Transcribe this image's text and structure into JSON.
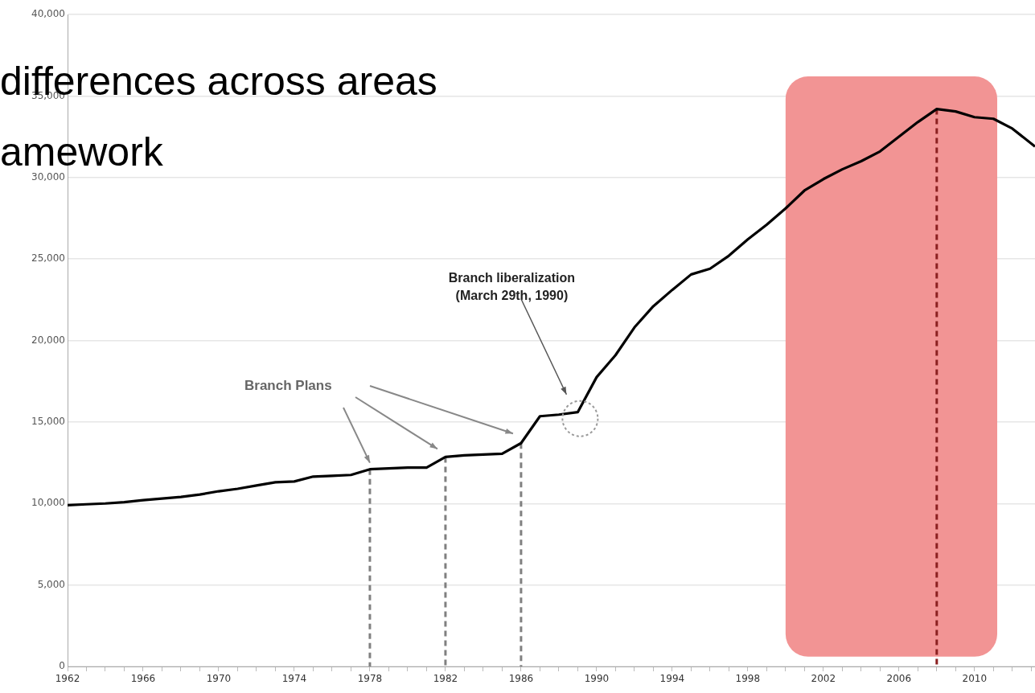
{
  "chart_data": {
    "type": "line",
    "x": [
      1962,
      1963,
      1964,
      1965,
      1966,
      1967,
      1968,
      1969,
      1970,
      1971,
      1972,
      1973,
      1974,
      1975,
      1976,
      1977,
      1978,
      1979,
      1980,
      1981,
      1982,
      1983,
      1984,
      1985,
      1986,
      1987,
      1988,
      1989,
      1990,
      1991,
      1992,
      1993,
      1994,
      1995,
      1996,
      1997,
      1998,
      1999,
      2000,
      2001,
      2002,
      2003,
      2004,
      2005,
      2006,
      2007,
      2008,
      2009,
      2010,
      2011,
      2012,
      2013.2
    ],
    "series": [
      {
        "color": "#000000",
        "values": [
          9900,
          9950,
          10000,
          10080,
          10200,
          10300,
          10400,
          10550,
          10750,
          10900,
          11100,
          11300,
          11350,
          11650,
          11700,
          11750,
          12100,
          12150,
          12200,
          12200,
          12850,
          12950,
          13000,
          13050,
          13700,
          15350,
          15450,
          15600,
          17750,
          19100,
          20800,
          22100,
          23100,
          24050,
          24400,
          25200,
          26200,
          27100,
          28100,
          29200,
          29900,
          30500,
          31000,
          31600,
          32500,
          33400,
          34200,
          34050,
          33700,
          33600,
          33000,
          31900
        ]
      }
    ],
    "xlim": [
      1962,
      2013.2
    ],
    "xticks": [
      1962,
      {
        "value": 1963,
        "label": null
      },
      {
        "value": 1964,
        "label": null
      },
      {
        "value": 1965,
        "label": null
      },
      1966,
      {
        "value": 1967,
        "label": null
      },
      {
        "value": 1968,
        "label": null
      },
      {
        "value": 1969,
        "label": null
      },
      1970,
      {
        "value": 1971,
        "label": null
      },
      {
        "value": 1972,
        "label": null
      },
      {
        "value": 1973,
        "label": null
      },
      1974,
      {
        "value": 1975,
        "label": null
      },
      {
        "value": 1976,
        "label": null
      },
      {
        "value": 1977,
        "label": null
      },
      1978,
      {
        "value": 1979,
        "label": null
      },
      {
        "value": 1980,
        "label": null
      },
      {
        "value": 1981,
        "label": null
      },
      1982,
      {
        "value": 1983,
        "label": null
      },
      {
        "value": 1984,
        "label": null
      },
      {
        "value": 1985,
        "label": null
      },
      1986,
      {
        "value": 1987,
        "label": null
      },
      {
        "value": 1988,
        "label": null
      },
      {
        "value": 1989,
        "label": null
      },
      1990,
      {
        "value": 1991,
        "label": null
      },
      {
        "value": 1992,
        "label": null
      },
      {
        "value": 1993,
        "label": null
      },
      1994,
      {
        "value": 1995,
        "label": null
      },
      {
        "value": 1996,
        "label": null
      },
      {
        "value": 1997,
        "label": null
      },
      1998,
      {
        "value": 1999,
        "label": null
      },
      {
        "value": 2000,
        "label": null
      },
      {
        "value": 2001,
        "label": null
      },
      2002,
      {
        "value": 2003,
        "label": null
      },
      {
        "value": 2004,
        "label": null
      },
      {
        "value": 2005,
        "label": null
      },
      2006,
      {
        "value": 2007,
        "label": null
      },
      {
        "value": 2008,
        "label": null
      },
      {
        "value": 2009,
        "label": null
      },
      2010,
      {
        "value": 2011,
        "label": null
      },
      {
        "value": 2012,
        "label": null
      },
      {
        "value": 2013,
        "label": null
      }
    ],
    "ylim": [
      0,
      40000
    ],
    "yticks": [
      {
        "value": 0,
        "label": "0"
      },
      {
        "value": 5000,
        "label": "5,000"
      },
      {
        "value": 10000,
        "label": "10,000"
      },
      {
        "value": 15000,
        "label": "15,000"
      },
      {
        "value": 20000,
        "label": "20,000"
      },
      {
        "value": 25000,
        "label": "25,000"
      },
      {
        "value": 30000,
        "label": "30,000"
      },
      {
        "value": 35000,
        "label": "35,000"
      },
      {
        "value": 40000,
        "label": "40,000"
      }
    ],
    "grid": "y",
    "marker": "none",
    "line_style": "solid",
    "legend": false,
    "ref_lines": [
      {
        "axis": "x",
        "value": 1978,
        "color": "#808080",
        "line_style": "dashed"
      },
      {
        "axis": "x",
        "value": 1982,
        "color": "#808080",
        "line_style": "dashed"
      },
      {
        "axis": "x",
        "value": 1986,
        "color": "#808080",
        "line_style": "dashed"
      },
      {
        "axis": "x",
        "value": 2008,
        "color": "#8b2020",
        "line_style": "dashed"
      }
    ],
    "bands": [
      {
        "axis": "x",
        "from": 2000,
        "to": 2011.2,
        "color": "#f29494"
      }
    ],
    "annotations": [
      "differences across areas",
      "amework",
      "Branch Plans",
      "Branch liberalization\n(March 29th, 1990)"
    ]
  }
}
